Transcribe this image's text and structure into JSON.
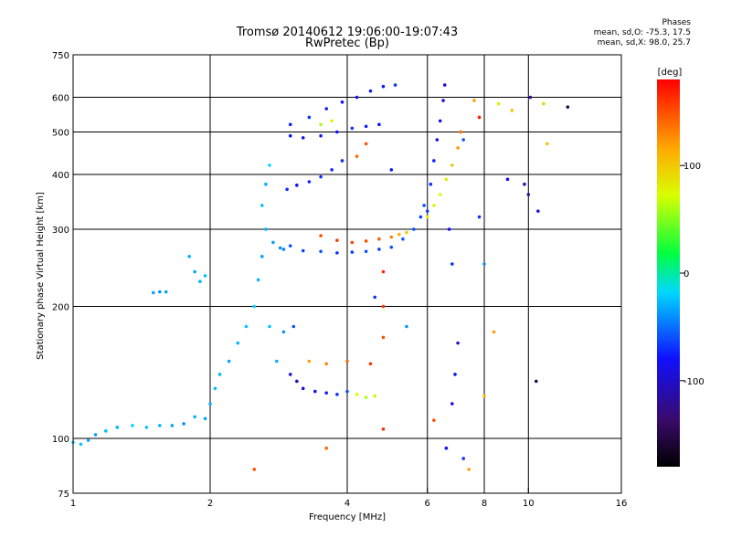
{
  "header": {
    "title": "Tromsø 20140612 19:06:00-19:07:43",
    "subtitle": "RwPretec (Bp)"
  },
  "phase_box": {
    "heading": "Phases",
    "line1": "mean, sd,O: -75.3, 17.5",
    "line2": "mean, sd,X:  98.0, 25.7"
  },
  "colorbar": {
    "unit": "[deg]",
    "ticks": [
      {
        "value": 100,
        "label": "100"
      },
      {
        "value": 0,
        "label": "0"
      },
      {
        "value": -100,
        "label": "-100"
      }
    ],
    "range": [
      -180,
      180
    ]
  },
  "chart_data": {
    "type": "scatter",
    "xlabel": "Frequency [MHz]",
    "ylabel": "Stationary phase Virtual Height [km]",
    "xscale": "log",
    "yscale": "log",
    "xlim": [
      1,
      16
    ],
    "ylim": [
      75,
      750
    ],
    "xticks": [
      {
        "value": 1,
        "label": "1"
      },
      {
        "value": 2,
        "label": "2"
      },
      {
        "value": 4,
        "label": "4"
      },
      {
        "value": 6,
        "label": "6"
      },
      {
        "value": 8,
        "label": "8"
      },
      {
        "value": 10,
        "label": "10"
      },
      {
        "value": 16,
        "label": "16"
      }
    ],
    "xgrid": [
      2,
      4,
      6,
      8,
      10
    ],
    "yticks": [
      {
        "value": 75,
        "label": "75"
      },
      {
        "value": 100,
        "label": "100"
      },
      {
        "value": 200,
        "label": "200"
      },
      {
        "value": 300,
        "label": "300"
      },
      {
        "value": 400,
        "label": "400"
      },
      {
        "value": 500,
        "label": "500"
      },
      {
        "value": 600,
        "label": "600"
      },
      {
        "value": 750,
        "label": "750"
      }
    ],
    "ygrid": [
      100,
      200,
      300,
      400,
      500,
      600
    ],
    "grid": true,
    "color_by": "phase [deg]",
    "points": [
      {
        "x": 1.0,
        "y": 98,
        "c": -20
      },
      {
        "x": 1.04,
        "y": 97,
        "c": -25
      },
      {
        "x": 1.08,
        "y": 99,
        "c": -30
      },
      {
        "x": 1.12,
        "y": 102,
        "c": -35
      },
      {
        "x": 1.18,
        "y": 104,
        "c": -25
      },
      {
        "x": 1.25,
        "y": 106,
        "c": -30
      },
      {
        "x": 1.35,
        "y": 107,
        "c": -20
      },
      {
        "x": 1.45,
        "y": 106,
        "c": -25
      },
      {
        "x": 1.55,
        "y": 107,
        "c": -30
      },
      {
        "x": 1.65,
        "y": 107,
        "c": -35
      },
      {
        "x": 1.75,
        "y": 108,
        "c": -40
      },
      {
        "x": 1.85,
        "y": 112,
        "c": -30
      },
      {
        "x": 1.95,
        "y": 111,
        "c": -35
      },
      {
        "x": 2.0,
        "y": 120,
        "c": -30
      },
      {
        "x": 2.05,
        "y": 130,
        "c": -25
      },
      {
        "x": 2.1,
        "y": 140,
        "c": -30
      },
      {
        "x": 2.2,
        "y": 150,
        "c": -35
      },
      {
        "x": 2.3,
        "y": 165,
        "c": -30
      },
      {
        "x": 2.4,
        "y": 180,
        "c": -25
      },
      {
        "x": 2.5,
        "y": 200,
        "c": -20
      },
      {
        "x": 2.55,
        "y": 230,
        "c": -30
      },
      {
        "x": 2.6,
        "y": 260,
        "c": -35
      },
      {
        "x": 2.65,
        "y": 300,
        "c": -30
      },
      {
        "x": 2.6,
        "y": 340,
        "c": -25
      },
      {
        "x": 2.65,
        "y": 380,
        "c": -30
      },
      {
        "x": 2.7,
        "y": 420,
        "c": -20
      },
      {
        "x": 2.75,
        "y": 280,
        "c": -35
      },
      {
        "x": 2.85,
        "y": 272,
        "c": -40
      },
      {
        "x": 2.9,
        "y": 270,
        "c": -45
      },
      {
        "x": 2.7,
        "y": 180,
        "c": -25
      },
      {
        "x": 2.8,
        "y": 150,
        "c": -30
      },
      {
        "x": 1.5,
        "y": 215,
        "c": -35
      },
      {
        "x": 1.55,
        "y": 216,
        "c": -40
      },
      {
        "x": 1.6,
        "y": 216,
        "c": -35
      },
      {
        "x": 1.8,
        "y": 260,
        "c": -30
      },
      {
        "x": 1.85,
        "y": 240,
        "c": -35
      },
      {
        "x": 1.9,
        "y": 228,
        "c": -30
      },
      {
        "x": 1.95,
        "y": 235,
        "c": -25
      },
      {
        "x": 3.0,
        "y": 275,
        "c": -60
      },
      {
        "x": 3.2,
        "y": 268,
        "c": -65
      },
      {
        "x": 3.5,
        "y": 267,
        "c": -60
      },
      {
        "x": 3.8,
        "y": 265,
        "c": -70
      },
      {
        "x": 4.1,
        "y": 266,
        "c": -65
      },
      {
        "x": 4.4,
        "y": 267,
        "c": -60
      },
      {
        "x": 4.7,
        "y": 270,
        "c": -65
      },
      {
        "x": 5.0,
        "y": 273,
        "c": -60
      },
      {
        "x": 5.3,
        "y": 285,
        "c": -55
      },
      {
        "x": 5.6,
        "y": 300,
        "c": -60
      },
      {
        "x": 5.8,
        "y": 320,
        "c": -65
      },
      {
        "x": 5.9,
        "y": 340,
        "c": -60
      },
      {
        "x": 3.5,
        "y": 290,
        "c": 150
      },
      {
        "x": 3.8,
        "y": 283,
        "c": 160
      },
      {
        "x": 4.1,
        "y": 280,
        "c": 155
      },
      {
        "x": 4.4,
        "y": 282,
        "c": 150
      },
      {
        "x": 4.7,
        "y": 285,
        "c": 145
      },
      {
        "x": 5.0,
        "y": 288,
        "c": 130
      },
      {
        "x": 5.2,
        "y": 292,
        "c": 110
      },
      {
        "x": 5.4,
        "y": 295,
        "c": 100
      },
      {
        "x": 2.95,
        "y": 370,
        "c": -70
      },
      {
        "x": 3.1,
        "y": 378,
        "c": -80
      },
      {
        "x": 3.3,
        "y": 385,
        "c": -75
      },
      {
        "x": 3.5,
        "y": 395,
        "c": -70
      },
      {
        "x": 3.7,
        "y": 410,
        "c": -75
      },
      {
        "x": 3.9,
        "y": 430,
        "c": -70
      },
      {
        "x": 4.2,
        "y": 440,
        "c": 140
      },
      {
        "x": 4.4,
        "y": 470,
        "c": 150
      },
      {
        "x": 3.0,
        "y": 490,
        "c": -80
      },
      {
        "x": 3.2,
        "y": 485,
        "c": -85
      },
      {
        "x": 3.5,
        "y": 490,
        "c": -75
      },
      {
        "x": 3.8,
        "y": 500,
        "c": -80
      },
      {
        "x": 4.1,
        "y": 510,
        "c": -70
      },
      {
        "x": 4.4,
        "y": 515,
        "c": -75
      },
      {
        "x": 4.7,
        "y": 520,
        "c": -80
      },
      {
        "x": 3.0,
        "y": 520,
        "c": -75
      },
      {
        "x": 3.3,
        "y": 540,
        "c": -70
      },
      {
        "x": 3.6,
        "y": 565,
        "c": -75
      },
      {
        "x": 3.9,
        "y": 585,
        "c": -80
      },
      {
        "x": 4.2,
        "y": 600,
        "c": -85
      },
      {
        "x": 4.5,
        "y": 620,
        "c": -75
      },
      {
        "x": 4.8,
        "y": 635,
        "c": -80
      },
      {
        "x": 5.1,
        "y": 640,
        "c": -70
      },
      {
        "x": 3.5,
        "y": 520,
        "c": 60
      },
      {
        "x": 3.7,
        "y": 530,
        "c": 80
      },
      {
        "x": 6.0,
        "y": 320,
        "c": 80
      },
      {
        "x": 6.2,
        "y": 340,
        "c": 75
      },
      {
        "x": 6.4,
        "y": 360,
        "c": 70
      },
      {
        "x": 6.6,
        "y": 390,
        "c": 80
      },
      {
        "x": 6.8,
        "y": 420,
        "c": 100
      },
      {
        "x": 7.0,
        "y": 460,
        "c": 120
      },
      {
        "x": 7.1,
        "y": 500,
        "c": 140
      },
      {
        "x": 6.0,
        "y": 330,
        "c": -65
      },
      {
        "x": 6.1,
        "y": 380,
        "c": -70
      },
      {
        "x": 6.2,
        "y": 430,
        "c": -75
      },
      {
        "x": 6.3,
        "y": 480,
        "c": -80
      },
      {
        "x": 6.4,
        "y": 530,
        "c": -85
      },
      {
        "x": 6.5,
        "y": 590,
        "c": -90
      },
      {
        "x": 6.55,
        "y": 640,
        "c": -95
      },
      {
        "x": 6.7,
        "y": 300,
        "c": -80
      },
      {
        "x": 6.8,
        "y": 250,
        "c": -70
      },
      {
        "x": 3.0,
        "y": 140,
        "c": -90
      },
      {
        "x": 3.1,
        "y": 135,
        "c": -110
      },
      {
        "x": 3.2,
        "y": 130,
        "c": -95
      },
      {
        "x": 3.4,
        "y": 128,
        "c": -80
      },
      {
        "x": 3.6,
        "y": 127,
        "c": -75
      },
      {
        "x": 3.8,
        "y": 126,
        "c": -70
      },
      {
        "x": 4.0,
        "y": 128,
        "c": -60
      },
      {
        "x": 4.2,
        "y": 126,
        "c": 70
      },
      {
        "x": 4.4,
        "y": 124,
        "c": 60
      },
      {
        "x": 4.6,
        "y": 125,
        "c": 80
      },
      {
        "x": 3.3,
        "y": 150,
        "c": 120
      },
      {
        "x": 3.6,
        "y": 148,
        "c": 130
      },
      {
        "x": 4.0,
        "y": 150,
        "c": 140
      },
      {
        "x": 4.5,
        "y": 148,
        "c": 160
      },
      {
        "x": 2.9,
        "y": 175,
        "c": -40
      },
      {
        "x": 3.05,
        "y": 180,
        "c": -60
      },
      {
        "x": 4.8,
        "y": 200,
        "c": 160
      },
      {
        "x": 4.8,
        "y": 240,
        "c": 165
      },
      {
        "x": 4.8,
        "y": 170,
        "c": 150
      },
      {
        "x": 4.8,
        "y": 105,
        "c": 160
      },
      {
        "x": 4.6,
        "y": 210,
        "c": -70
      },
      {
        "x": 6.2,
        "y": 110,
        "c": 150
      },
      {
        "x": 6.6,
        "y": 95,
        "c": -80
      },
      {
        "x": 6.8,
        "y": 120,
        "c": -90
      },
      {
        "x": 7.2,
        "y": 90,
        "c": -70
      },
      {
        "x": 7.4,
        "y": 85,
        "c": 120
      },
      {
        "x": 2.5,
        "y": 85,
        "c": 150
      },
      {
        "x": 3.6,
        "y": 95,
        "c": 140
      },
      {
        "x": 7.2,
        "y": 480,
        "c": -60
      },
      {
        "x": 7.6,
        "y": 590,
        "c": 120
      },
      {
        "x": 7.8,
        "y": 540,
        "c": 170
      },
      {
        "x": 8.6,
        "y": 580,
        "c": 80
      },
      {
        "x": 9.2,
        "y": 560,
        "c": 100
      },
      {
        "x": 10.1,
        "y": 600,
        "c": -120
      },
      {
        "x": 10.8,
        "y": 580,
        "c": 90
      },
      {
        "x": 11.0,
        "y": 470,
        "c": 100
      },
      {
        "x": 12.2,
        "y": 570,
        "c": -150
      },
      {
        "x": 9.8,
        "y": 380,
        "c": -100
      },
      {
        "x": 10.0,
        "y": 360,
        "c": -110
      },
      {
        "x": 10.5,
        "y": 330,
        "c": -90
      },
      {
        "x": 9.0,
        "y": 390,
        "c": -80
      },
      {
        "x": 7.8,
        "y": 320,
        "c": -70
      },
      {
        "x": 8.0,
        "y": 250,
        "c": -40
      },
      {
        "x": 8.4,
        "y": 175,
        "c": 120
      },
      {
        "x": 8.0,
        "y": 125,
        "c": 110
      },
      {
        "x": 10.4,
        "y": 135,
        "c": -150
      },
      {
        "x": 7.0,
        "y": 165,
        "c": -100
      },
      {
        "x": 6.9,
        "y": 140,
        "c": -80
      },
      {
        "x": 5.4,
        "y": 180,
        "c": -40
      },
      {
        "x": 5.0,
        "y": 410,
        "c": -80
      }
    ]
  }
}
